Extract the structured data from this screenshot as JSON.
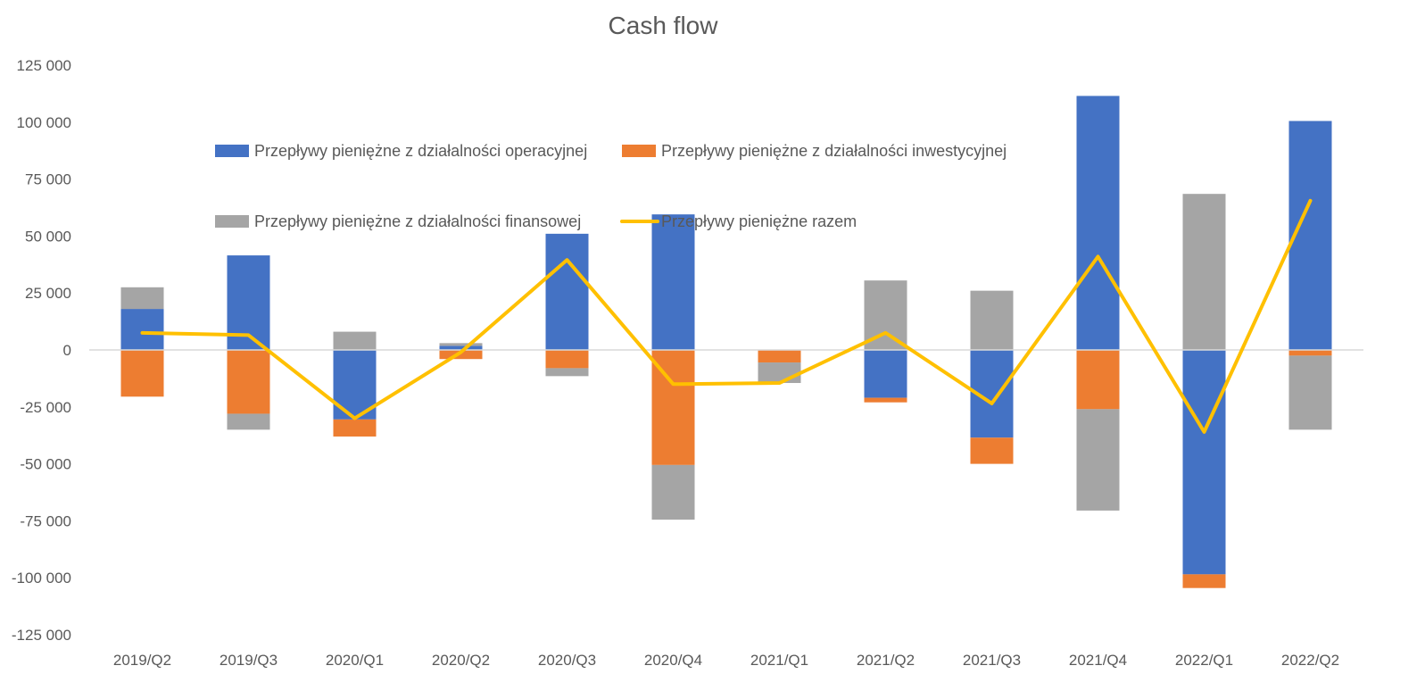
{
  "chart_data": {
    "type": "bar",
    "stacked": true,
    "title": "Cash flow",
    "xlabel": "",
    "ylabel": "",
    "ylim": [
      -125000,
      125000
    ],
    "ytick_step": 25000,
    "ytick_labels": [
      "125 000",
      "100 000",
      "75 000",
      "50 000",
      "25 000",
      "0",
      "-25 000",
      "-50 000",
      "-75 000",
      "-100 000",
      "-125 000"
    ],
    "categories": [
      "2019/Q2",
      "2019/Q3",
      "2020/Q1",
      "2020/Q2",
      "2020/Q3",
      "2020/Q4",
      "2021/Q1",
      "2021/Q2",
      "2021/Q3",
      "2021/Q4",
      "2022/Q1",
      "2022/Q2"
    ],
    "series": [
      {
        "name": "Przepływy pieniężne z działalności operacyjnej",
        "kind": "bar",
        "color": "#4472C4",
        "values": [
          18000,
          41500,
          -30500,
          1800,
          51000,
          59500,
          0,
          -21000,
          -38500,
          111500,
          -98500,
          100500
        ]
      },
      {
        "name": "Przepływy pieniężne z działalności inwestycyjnej",
        "kind": "bar",
        "color": "#ED7D31",
        "values": [
          -20500,
          -28000,
          -7500,
          -4000,
          -8000,
          -50500,
          -5500,
          -2000,
          -11500,
          -26000,
          -6000,
          -2500
        ]
      },
      {
        "name": "Przepływy pieniężne z działalności finansowej",
        "kind": "bar",
        "color": "#A5A5A5",
        "values": [
          9500,
          -7000,
          8000,
          1200,
          -3500,
          -24000,
          -9000,
          30500,
          26000,
          -44500,
          68500,
          -32500
        ]
      },
      {
        "name": "Przepływy pieniężne razem",
        "kind": "line",
        "color": "#FFC000",
        "values": [
          7500,
          6500,
          -30000,
          -1000,
          39500,
          -15000,
          -14500,
          7500,
          -23500,
          41000,
          -36000,
          65500
        ]
      }
    ],
    "legend_position": "top-left inside plot",
    "grid": false
  }
}
